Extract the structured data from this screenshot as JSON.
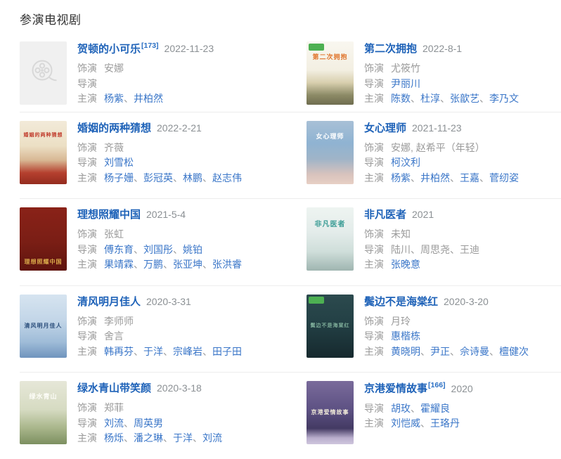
{
  "section": {
    "title": "参演电视剧"
  },
  "colors": {
    "heading": "#333333",
    "title_link": "#1e62b8",
    "person_link": "#3a76c8",
    "ref_link": "#2a6fc4",
    "text_gray": "#9a9a9a",
    "date_gray": "#8b9094",
    "separator_line": "#ededed",
    "badge_green": "#4db052",
    "placeholder_bg": "#f0f0f0",
    "placeholder_icon": "#d8d8d8"
  },
  "entries": [
    {
      "title": "贺顿的小可乐",
      "ref": "[173]",
      "date": "2022-11-23",
      "poster": {
        "type": "placeholder",
        "icon": "film-reel"
      },
      "credits": [
        {
          "label": "饰演",
          "names": [
            {
              "t": "安娜",
              "link": false
            }
          ]
        },
        {
          "label": "导演",
          "names": []
        },
        {
          "label": "主演",
          "names": [
            {
              "t": "杨紫",
              "link": true
            },
            {
              "t": "井柏然",
              "link": true
            }
          ]
        }
      ]
    },
    {
      "title": "第二次拥抱",
      "ref": "",
      "date": "2022-8-1",
      "poster": {
        "type": "art",
        "has_badge": true,
        "gradient": [
          "#f9f7f0 0%",
          "#f3efe2 45%",
          "#d8cfae 65%",
          "#8c8a66 85%",
          "#6f6d4f 100%"
        ],
        "label": {
          "text": "第二次拥抱",
          "color": "#e0762f",
          "size": 9,
          "pos": "top"
        }
      },
      "credits": [
        {
          "label": "饰演",
          "names": [
            {
              "t": "尤筱竹",
              "link": false
            }
          ]
        },
        {
          "label": "导演",
          "names": [
            {
              "t": "尹丽川",
              "link": true
            }
          ]
        },
        {
          "label": "主演",
          "names": [
            {
              "t": "陈数",
              "link": true
            },
            {
              "t": "杜淳",
              "link": true
            },
            {
              "t": "张歆艺",
              "link": true
            },
            {
              "t": "李乃文",
              "link": true
            }
          ]
        }
      ]
    },
    {
      "title": "婚姻的两种猜想",
      "ref": "",
      "date": "2022-2-21",
      "poster": {
        "type": "art",
        "has_badge": false,
        "gradient": [
          "#f2ead9 0%",
          "#ecdfc4 40%",
          "#d8b894 62%",
          "#b5402f 82%",
          "#942c1f 100%"
        ],
        "label": {
          "text": "婚姻的两种猜想",
          "color": "#c03a2a",
          "size": 7,
          "pos": "top"
        }
      },
      "credits": [
        {
          "label": "饰演",
          "names": [
            {
              "t": "齐薇",
              "link": false
            }
          ]
        },
        {
          "label": "导演",
          "names": [
            {
              "t": "刘雪松",
              "link": true
            }
          ]
        },
        {
          "label": "主演",
          "names": [
            {
              "t": "杨子姗",
              "link": true
            },
            {
              "t": "彭冠英",
              "link": true
            },
            {
              "t": "林鹏",
              "link": true
            },
            {
              "t": "赵志伟",
              "link": true
            }
          ]
        }
      ]
    },
    {
      "title": "女心理师",
      "ref": "",
      "date": "2021-11-23",
      "poster": {
        "type": "art",
        "has_badge": false,
        "gradient": [
          "#a8c0d6 0%",
          "#8fb3d2 35%",
          "#9fb4c8 60%",
          "#d9c3bd 85%",
          "#e7cfc4 100%"
        ],
        "label": {
          "text": "女心理师",
          "color": "#ffffff",
          "size": 9,
          "pos": "top"
        }
      },
      "credits": [
        {
          "label": "饰演",
          "names": [
            {
              "t": "安娜, 赵希平（年轻）",
              "link": false
            }
          ]
        },
        {
          "label": "导演",
          "names": [
            {
              "t": "柯汶利",
              "link": true
            }
          ]
        },
        {
          "label": "主演",
          "names": [
            {
              "t": "杨紫",
              "link": true
            },
            {
              "t": "井柏然",
              "link": true
            },
            {
              "t": "王嘉",
              "link": true
            },
            {
              "t": "菅纫姿",
              "link": true
            }
          ]
        }
      ]
    },
    {
      "title": "理想照耀中国",
      "ref": "",
      "date": "2021-5-4",
      "poster": {
        "type": "art",
        "has_badge": false,
        "gradient": [
          "#8a2218 0%",
          "#7a1e15 55%",
          "#5e140e 100%"
        ],
        "label": {
          "text": "理想照耀中国",
          "color": "#d9a94a",
          "size": 8,
          "pos": "bottom"
        }
      },
      "credits": [
        {
          "label": "饰演",
          "names": [
            {
              "t": "张虹",
              "link": false
            }
          ]
        },
        {
          "label": "导演",
          "names": [
            {
              "t": "傅东育",
              "link": true
            },
            {
              "t": "刘国彤",
              "link": true
            },
            {
              "t": "姚铂",
              "link": true
            }
          ]
        },
        {
          "label": "主演",
          "names": [
            {
              "t": "果靖霖",
              "link": true
            },
            {
              "t": "万鹏",
              "link": true
            },
            {
              "t": "张亚坤",
              "link": true
            },
            {
              "t": "张洪睿",
              "link": true
            }
          ]
        }
      ]
    },
    {
      "title": "非凡医者",
      "ref": "",
      "date": "2021",
      "poster": {
        "type": "art",
        "has_badge": false,
        "gradient": [
          "#eef4f1 0%",
          "#e3ecea 40%",
          "#cfdeda 70%",
          "#9fb5b0 100%"
        ],
        "label": {
          "text": "非凡医者",
          "color": "#3c9d96",
          "size": 10,
          "pos": "top"
        }
      },
      "credits": [
        {
          "label": "饰演",
          "names": [
            {
              "t": "未知",
              "link": false
            }
          ]
        },
        {
          "label": "导演",
          "names": [
            {
              "t": "陆川",
              "link": false
            },
            {
              "t": "周思尧",
              "link": false
            },
            {
              "t": "王迪",
              "link": false
            }
          ]
        },
        {
          "label": "主演",
          "names": [
            {
              "t": "张晚意",
              "link": true
            }
          ]
        }
      ]
    },
    {
      "title": "清风明月佳人",
      "ref": "",
      "date": "2020-3-31",
      "poster": {
        "type": "art",
        "has_badge": false,
        "gradient": [
          "#d6e4f0 0%",
          "#c3d6e8 40%",
          "#9fbcd8 75%",
          "#6f94bd 100%"
        ],
        "label": {
          "text": "清风明月佳人",
          "color": "#2c4f7c",
          "size": 8,
          "pos": "middle"
        }
      },
      "credits": [
        {
          "label": "饰演",
          "names": [
            {
              "t": "李师师",
              "link": false
            }
          ]
        },
        {
          "label": "导演",
          "names": [
            {
              "t": "舍言",
              "link": false
            }
          ]
        },
        {
          "label": "主演",
          "names": [
            {
              "t": "韩再芬",
              "link": true
            },
            {
              "t": "于洋",
              "link": true
            },
            {
              "t": "宗峰岩",
              "link": true
            },
            {
              "t": "田子田",
              "link": true
            }
          ]
        }
      ]
    },
    {
      "title": "鬓边不是海棠红",
      "ref": "",
      "date": "2020-3-20",
      "poster": {
        "type": "art",
        "has_badge": true,
        "gradient": [
          "#2c4a4e 0%",
          "#234045 45%",
          "#16292e 100%"
        ],
        "label": {
          "text": "鬓边不是海棠红",
          "color": "#7fae9a",
          "size": 7,
          "pos": "middle"
        }
      },
      "credits": [
        {
          "label": "饰演",
          "names": [
            {
              "t": "月玲",
              "link": false
            }
          ]
        },
        {
          "label": "导演",
          "names": [
            {
              "t": "惠楷栋",
              "link": true
            }
          ]
        },
        {
          "label": "主演",
          "names": [
            {
              "t": "黄晓明",
              "link": true
            },
            {
              "t": "尹正",
              "link": true
            },
            {
              "t": "佘诗曼",
              "link": true
            },
            {
              "t": "檀健次",
              "link": true
            }
          ]
        }
      ]
    },
    {
      "title": "绿水青山带笑颜",
      "ref": "",
      "date": "2020-3-18",
      "poster": {
        "type": "art",
        "has_badge": false,
        "gradient": [
          "#e6e7d8 0%",
          "#d6dbc2 45%",
          "#a8b58a 75%",
          "#7c8f60 100%"
        ],
        "label": {
          "text": "绿水青山",
          "color": "#fdfdf8",
          "size": 9,
          "pos": "top"
        }
      },
      "credits": [
        {
          "label": "饰演",
          "names": [
            {
              "t": "郑菲",
              "link": false
            }
          ]
        },
        {
          "label": "导演",
          "names": [
            {
              "t": "刘流",
              "link": true
            },
            {
              "t": "周英男",
              "link": true
            }
          ]
        },
        {
          "label": "主演",
          "names": [
            {
              "t": "杨烁",
              "link": true
            },
            {
              "t": "潘之琳",
              "link": true
            },
            {
              "t": "于洋",
              "link": true
            },
            {
              "t": "刘流",
              "link": true
            }
          ]
        }
      ]
    },
    {
      "title": "京港爱情故事",
      "ref": "[166]",
      "date": "2020",
      "poster": {
        "type": "art",
        "has_badge": false,
        "gradient": [
          "#7a6b9b 0%",
          "#5d5183 45%",
          "#433a63 75%",
          "#b9aecd 90%",
          "#cfc6dd 100%"
        ],
        "label": {
          "text": "京港爱情故事",
          "color": "#f0ead8",
          "size": 8,
          "pos": "middle"
        }
      },
      "credits": [
        {
          "label": "导演",
          "names": [
            {
              "t": "胡玫",
              "link": true
            },
            {
              "t": "霍耀良",
              "link": true
            }
          ]
        },
        {
          "label": "主演",
          "names": [
            {
              "t": "刘恺威",
              "link": true
            },
            {
              "t": "王珞丹",
              "link": true
            }
          ]
        }
      ]
    }
  ]
}
